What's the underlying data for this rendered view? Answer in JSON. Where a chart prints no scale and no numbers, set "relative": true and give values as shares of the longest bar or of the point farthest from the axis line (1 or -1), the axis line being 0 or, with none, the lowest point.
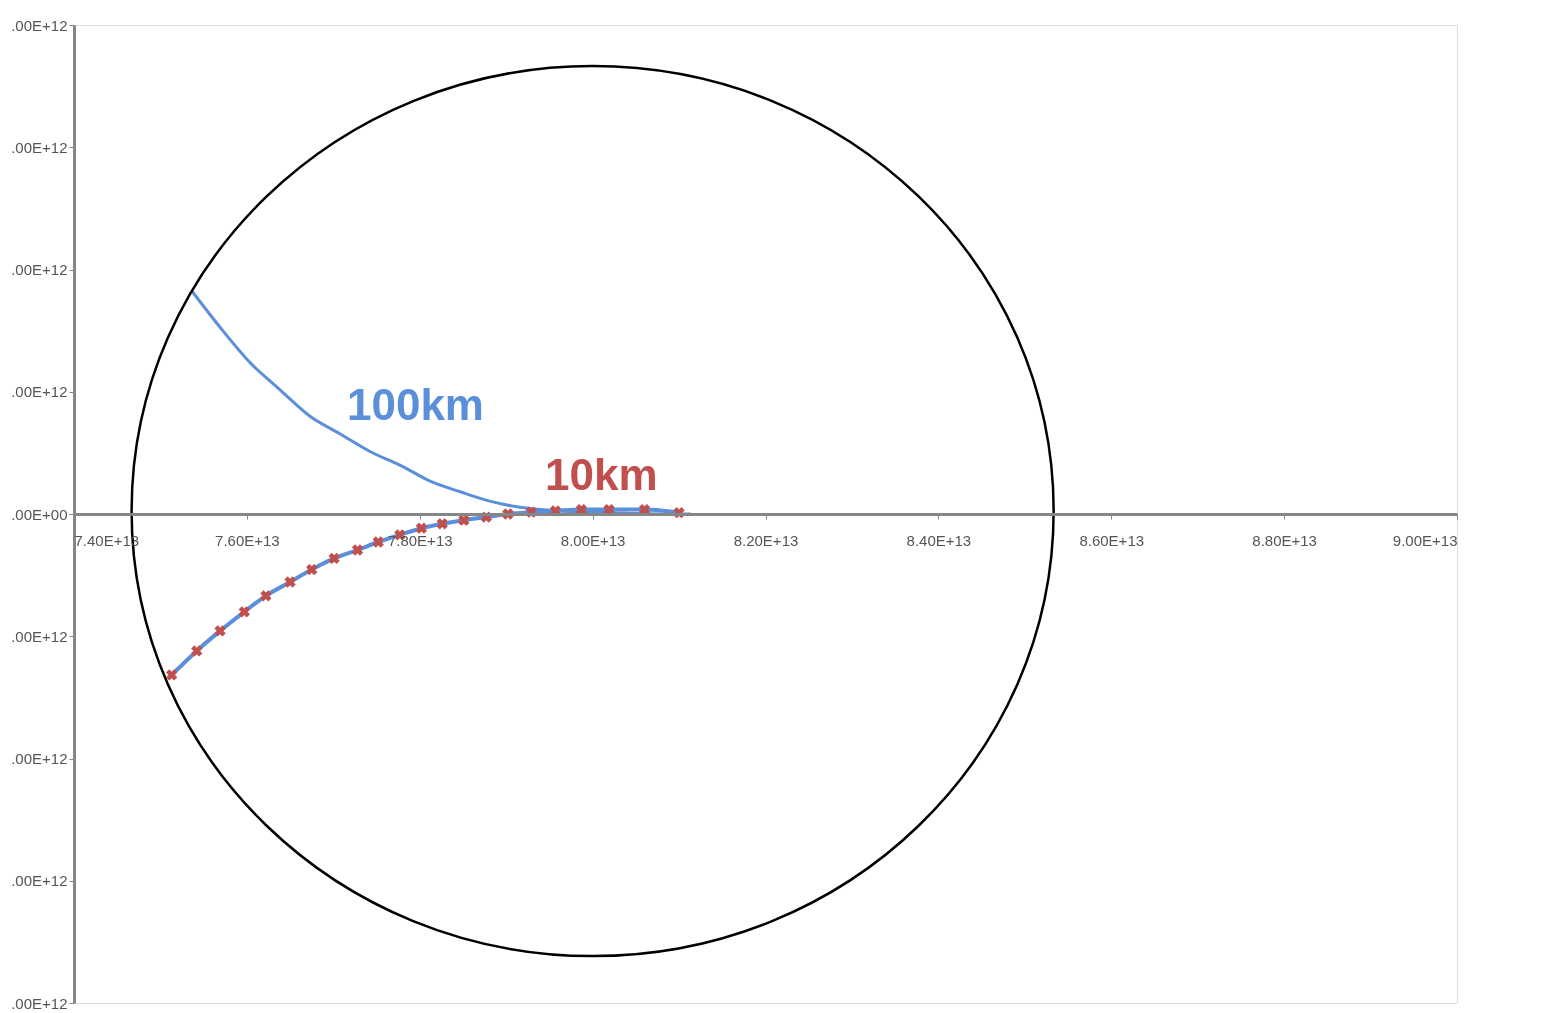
{
  "chart_data": {
    "type": "line",
    "relative": true,
    "xlim": [
      74000000000000.0,
      90000000000000.0
    ],
    "xticks": [
      {
        "value": 74000000000000.0,
        "label": "7.40E+13"
      },
      {
        "value": 76000000000000.0,
        "label": "7.60E+13"
      },
      {
        "value": 78000000000000.0,
        "label": "7.80E+13"
      },
      {
        "value": 80000000000000.0,
        "label": "8.00E+13"
      },
      {
        "value": 82000000000000.0,
        "label": "8.20E+13"
      },
      {
        "value": 84000000000000.0,
        "label": "8.40E+13"
      },
      {
        "value": 86000000000000.0,
        "label": "8.60E+13"
      },
      {
        "value": 88000000000000.0,
        "label": "8.80E+13"
      },
      {
        "value": 90000000000000.0,
        "label": "9.00E+13"
      }
    ],
    "grid": false,
    "annotations": [
      ".00E+12",
      ".00E+12",
      ".00E+12",
      ".00E+12",
      ".00E+00",
      ".00E+12",
      ".00E+12",
      ".00E+12",
      ".00E+12"
    ],
    "series": [
      {
        "name": "100km",
        "color": "#5b8fd9",
        "marker": "none",
        "x": [
          75370000000000.0,
          75690000000000.0,
          76040000000000.0,
          76380000000000.0,
          76730000000000.0,
          77080000000000.0,
          77430000000000.0,
          77770000000000.0,
          78120000000000.0,
          78470000000000.0,
          78810000000000.0,
          79160000000000.0,
          79630000000000.0,
          80200000000000.0,
          80780000000000.0,
          81130000000000.0
        ],
        "values": [
          1,
          0.84,
          0.68,
          0.56,
          0.44,
          0.36,
          0.28,
          0.22,
          0.148,
          0.1,
          0.058,
          0.03,
          0.014,
          0.006,
          0,
          0
        ]
      },
      {
        "color": "#5b8fd9",
        "marker": "none",
        "x": [
          75130000000000.0,
          75420000000000.0,
          75690000000000.0,
          75970000000000.0,
          76220000000000.0,
          76500000000000.0,
          76750000000000.0,
          77010000000000.0,
          77280000000000.0,
          77520000000000.0,
          77770000000000.0,
          78020000000000.0,
          78260000000000.0,
          78510000000000.0,
          78770000000000.0,
          79020000000000.0,
          79290000000000.0,
          79570000000000.0,
          79870000000000.0,
          80190000000000.0,
          80600000000000.0,
          81000000000000.0
        ],
        "values": [
          -0.724,
          -0.616,
          -0.526,
          -0.44,
          -0.368,
          -0.306,
          -0.25,
          -0.2,
          -0.162,
          -0.126,
          -0.094,
          -0.064,
          -0.044,
          -0.028,
          -0.014,
          0,
          0.008,
          0.014,
          0.02,
          0.02,
          0.02,
          0.006
        ]
      },
      {
        "name": "10km",
        "type": "scatter",
        "color": "#c0504d",
        "marker": "cross",
        "x": [
          75130000000000.0,
          75420000000000.0,
          75690000000000.0,
          75970000000000.0,
          76220000000000.0,
          76500000000000.0,
          76750000000000.0,
          77010000000000.0,
          77280000000000.0,
          77520000000000.0,
          77770000000000.0,
          78020000000000.0,
          78260000000000.0,
          78510000000000.0,
          78770000000000.0,
          79020000000000.0,
          79290000000000.0,
          79570000000000.0,
          79870000000000.0,
          80190000000000.0,
          80600000000000.0,
          81000000000000.0
        ],
        "values": [
          -0.724,
          -0.616,
          -0.526,
          -0.44,
          -0.368,
          -0.306,
          -0.25,
          -0.2,
          -0.162,
          -0.126,
          -0.094,
          -0.064,
          -0.044,
          -0.028,
          -0.014,
          0,
          0.008,
          0.014,
          0.02,
          0.02,
          0.02,
          0.006
        ]
      }
    ]
  }
}
